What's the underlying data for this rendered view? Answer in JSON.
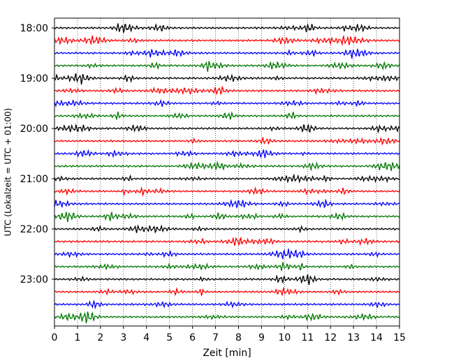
{
  "chart_data": {
    "type": "line",
    "title": "",
    "xlabel": "Zeit  [min]",
    "ylabel": "UTC (Lokalzeit = UTC + 01:00)",
    "xlim": [
      0,
      15
    ],
    "x_ticks": [
      0,
      1,
      2,
      3,
      4,
      5,
      6,
      7,
      8,
      9,
      10,
      11,
      12,
      13,
      14,
      15
    ],
    "x_tick_labels": [
      "0",
      "1",
      "2",
      "3",
      "4",
      "5",
      "6",
      "7",
      "8",
      "9",
      "10",
      "11",
      "12",
      "13",
      "14",
      "15"
    ],
    "y_ticks": [
      {
        "label": "18:00",
        "trace_index": 0
      },
      {
        "label": "19:00",
        "trace_index": 4
      },
      {
        "label": "20:00",
        "trace_index": 8
      },
      {
        "label": "21:00",
        "trace_index": 12
      },
      {
        "label": "22:00",
        "trace_index": 16
      },
      {
        "label": "23:00",
        "trace_index": 20
      }
    ],
    "trace_interval_min": 15,
    "trace_count": 24,
    "trace_colors": [
      "#000000",
      "#ff0000",
      "#0000ff",
      "#007700"
    ],
    "grid": {
      "vertical": true,
      "style": "dotted"
    }
  }
}
